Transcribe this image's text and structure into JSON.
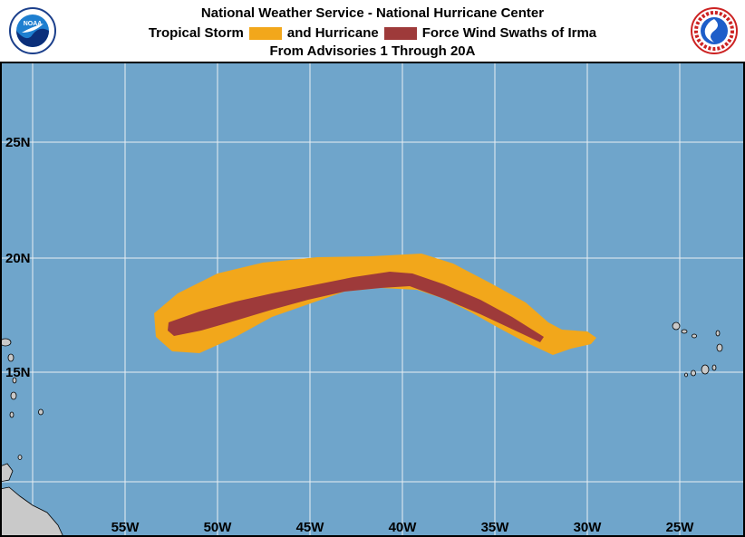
{
  "header": {
    "title": "National Weather Service - National Hurricane Center",
    "legend": {
      "ts_label": "Tropical Storm",
      "ts_color": "#f2a71b",
      "hu_label": "and Hurricane",
      "hu_color": "#9e3a3a",
      "suffix": "Force Wind Swaths of Irma"
    },
    "subtitle": "From Advisories 1 Through 20A"
  },
  "logos": {
    "left": {
      "name": "noaa-logo",
      "text": "NOAA"
    },
    "right": {
      "name": "nws-logo"
    }
  },
  "colors": {
    "ocean": "#6fa5cb",
    "grid": "#e8eef3",
    "land": "#c9c9c9"
  },
  "map": {
    "lon_labels": [
      "55W",
      "50W",
      "45W",
      "40W",
      "35W",
      "30W",
      "25W"
    ],
    "lat_labels": [
      "25N",
      "20N",
      "15N"
    ]
  }
}
